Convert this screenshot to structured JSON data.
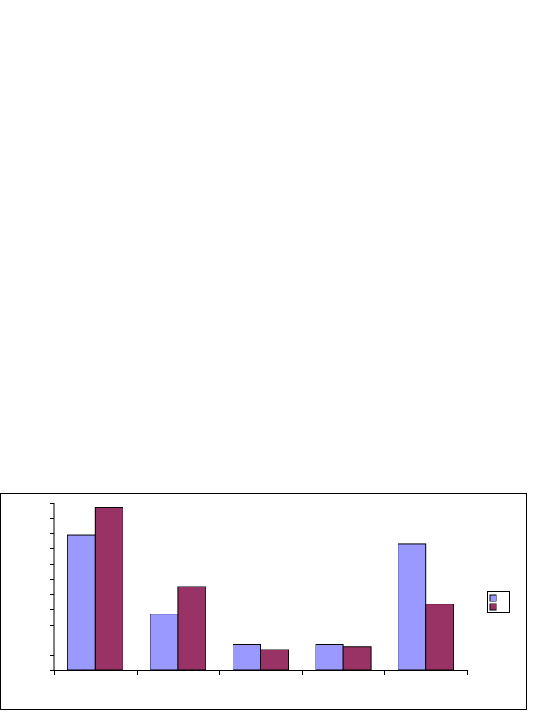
{
  "chart_data": {
    "type": "bar",
    "categories": [
      "",
      "",
      "",
      "",
      ""
    ],
    "series": [
      {
        "values": [
          8.9,
          3.7,
          1.7,
          1.7,
          8.3
        ],
        "color": "#9999ff"
      },
      {
        "values": [
          10.7,
          5.5,
          1.35,
          1.55,
          4.35
        ],
        "color": "#993366"
      }
    ],
    "ylim": [
      0,
      11
    ],
    "y_ticks": [
      0,
      1,
      2,
      3,
      4,
      5,
      6,
      7,
      8,
      9,
      10,
      11
    ],
    "grid": false,
    "legend": {
      "position": "right",
      "entries": [
        "",
        ""
      ]
    },
    "title": "",
    "xlabel": "",
    "ylabel": ""
  }
}
